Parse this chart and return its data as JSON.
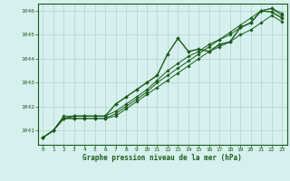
{
  "background_color": "#d6f0ee",
  "plot_bg_color": "#d6f0ee",
  "grid_color": "#b8d8d0",
  "line_color": "#1a5c1a",
  "marker_color": "#1a5c1a",
  "title": "Graphe pression niveau de la mer (hPa)",
  "xlim": [
    -0.5,
    23.5
  ],
  "ylim": [
    1040.4,
    1046.3
  ],
  "yticks": [
    1041,
    1042,
    1043,
    1044,
    1045,
    1046
  ],
  "xticks": [
    0,
    1,
    2,
    3,
    4,
    5,
    6,
    7,
    8,
    9,
    10,
    11,
    12,
    13,
    14,
    15,
    16,
    17,
    18,
    19,
    20,
    21,
    22,
    23
  ],
  "series": [
    [
      1040.7,
      1041.0,
      1041.5,
      1041.6,
      1041.6,
      1041.6,
      1041.6,
      1042.1,
      1042.4,
      1042.7,
      1043.0,
      1043.3,
      1044.2,
      1044.85,
      1044.3,
      1044.4,
      1044.3,
      1044.6,
      1044.7,
      1045.3,
      1045.5,
      1046.0,
      1045.95,
      1045.7
    ],
    [
      1040.7,
      1041.0,
      1041.5,
      1041.5,
      1041.5,
      1041.5,
      1041.5,
      1041.6,
      1041.9,
      1042.2,
      1042.5,
      1042.8,
      1043.1,
      1043.4,
      1043.7,
      1044.0,
      1044.3,
      1044.5,
      1044.7,
      1045.0,
      1045.2,
      1045.5,
      1045.8,
      1045.55
    ],
    [
      1040.7,
      1041.0,
      1041.5,
      1041.5,
      1041.5,
      1041.5,
      1041.5,
      1041.7,
      1042.0,
      1042.3,
      1042.6,
      1043.0,
      1043.3,
      1043.6,
      1043.9,
      1044.2,
      1044.5,
      1044.8,
      1045.0,
      1045.3,
      1045.5,
      1046.0,
      1046.1,
      1045.8
    ],
    [
      1040.7,
      1041.0,
      1041.6,
      1041.6,
      1041.6,
      1041.6,
      1041.6,
      1041.8,
      1042.1,
      1042.4,
      1042.7,
      1043.1,
      1043.5,
      1043.8,
      1044.1,
      1044.3,
      1044.6,
      1044.8,
      1045.1,
      1045.4,
      1045.7,
      1046.0,
      1046.1,
      1045.9
    ]
  ]
}
